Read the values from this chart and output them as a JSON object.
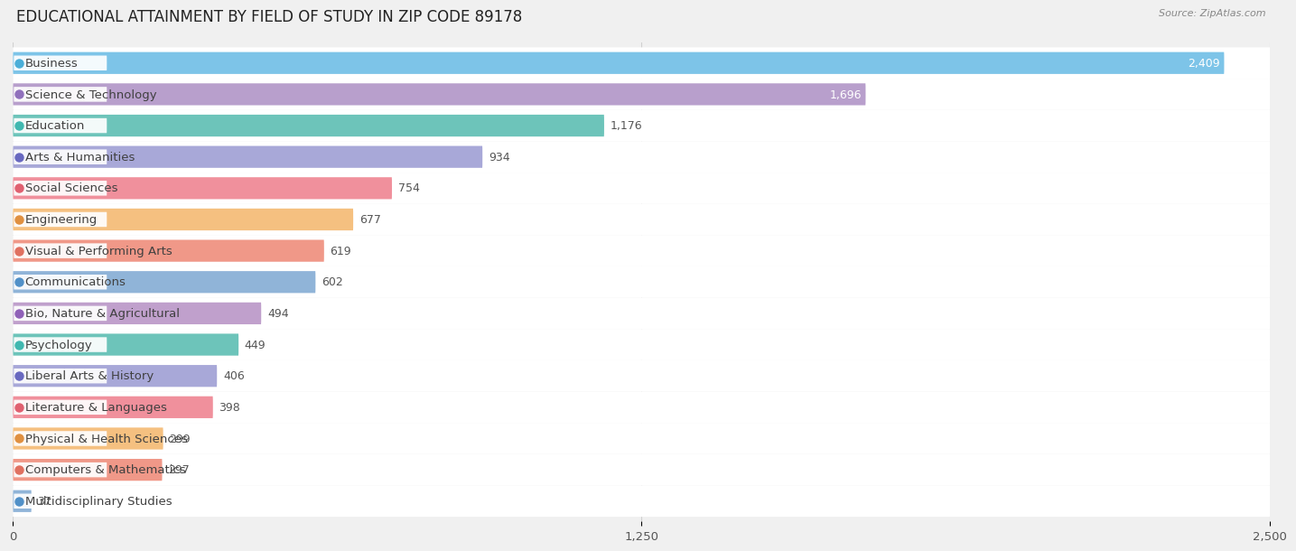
{
  "title": "EDUCATIONAL ATTAINMENT BY FIELD OF STUDY IN ZIP CODE 89178",
  "source": "Source: ZipAtlas.com",
  "categories": [
    "Business",
    "Science & Technology",
    "Education",
    "Arts & Humanities",
    "Social Sciences",
    "Engineering",
    "Visual & Performing Arts",
    "Communications",
    "Bio, Nature & Agricultural",
    "Psychology",
    "Liberal Arts & History",
    "Literature & Languages",
    "Physical & Health Sciences",
    "Computers & Mathematics",
    "Multidisciplinary Studies"
  ],
  "values": [
    2409,
    1696,
    1176,
    934,
    754,
    677,
    619,
    602,
    494,
    449,
    406,
    398,
    299,
    297,
    37
  ],
  "bar_colors": [
    "#7DC4E8",
    "#B89FCC",
    "#6DC4BA",
    "#A8A8D8",
    "#F0909C",
    "#F5C080",
    "#F09888",
    "#90B4D8",
    "#C0A0CC",
    "#6DC4BA",
    "#A8A8D8",
    "#F0909C",
    "#F5C080",
    "#F09888",
    "#90B4D8"
  ],
  "dot_colors": [
    "#4AAED8",
    "#9070BC",
    "#40B8B0",
    "#6868C0",
    "#E06070",
    "#E09040",
    "#E07060",
    "#5090C8",
    "#9060B8",
    "#40B8B0",
    "#6868C0",
    "#E06070",
    "#E09040",
    "#E07060",
    "#5090C8"
  ],
  "value_inside_threshold": 1400,
  "xlim": [
    0,
    2500
  ],
  "xticks": [
    0,
    1250,
    2500
  ],
  "xtick_labels": [
    "0",
    "1,250",
    "2,500"
  ],
  "background_color": "#f0f0f0",
  "row_bg_color": "#ffffff",
  "title_fontsize": 12,
  "label_fontsize": 9.5,
  "value_fontsize": 9
}
